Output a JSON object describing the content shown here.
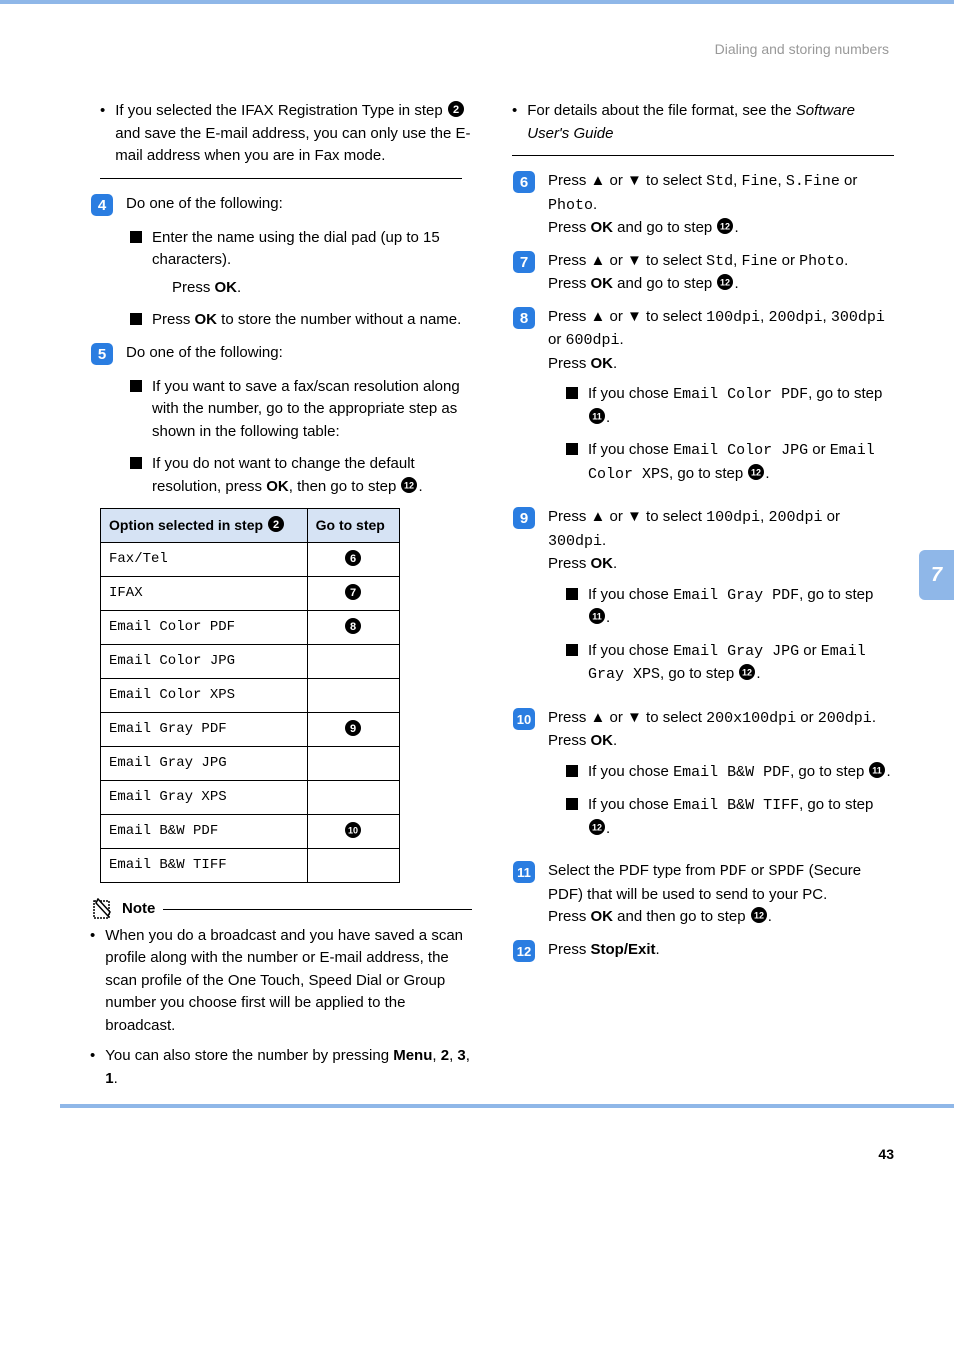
{
  "colors": {
    "accent": "#8fb7e8",
    "step_fill": "#2a7de1",
    "ref_fill": "#000000",
    "header_bg": "#d6e3f4"
  },
  "header": {
    "breadcrumb": "Dialing and storing numbers"
  },
  "side_tab": "7",
  "page_number": "43",
  "left": {
    "intro_bullet": {
      "part1": "If you selected the IFAX Registration Type in step ",
      "ref": "2",
      "part2": " and save the E-mail address, you can only use the E-mail address when you are in Fax mode."
    },
    "step4": {
      "num": "4",
      "lead": "Do one of the following:",
      "items": [
        {
          "line1": "Enter the name using the dial pad (up to 15 characters).",
          "line2_a": "Press ",
          "line2_b": "OK",
          "line2_c": "."
        },
        {
          "line1_a": "Press ",
          "line1_b": "OK",
          "line1_c": " to store the number without a name."
        }
      ]
    },
    "step5": {
      "num": "5",
      "lead": "Do one of the following:",
      "items": [
        {
          "text": "If you want to save a fax/scan resolution along with the number, go to the appropriate step as shown in the following table:"
        },
        {
          "part1": "If you do not want to change the default resolution, press ",
          "bold": "OK",
          "part2": ", then go to step ",
          "ref": "12",
          "part3": "."
        }
      ]
    },
    "table": {
      "h1_a": "Option selected in step ",
      "h1_ref": "2",
      "h2": "Go to step",
      "rows": [
        {
          "opt": "Fax/Tel",
          "ref": "6"
        },
        {
          "opt": "IFAX",
          "ref": "7"
        },
        {
          "opt": "Email Color PDF",
          "ref": "8"
        },
        {
          "opt": "Email Color JPG",
          "ref": ""
        },
        {
          "opt": "Email Color XPS",
          "ref": ""
        },
        {
          "opt": "Email Gray PDF",
          "ref": "9"
        },
        {
          "opt": "Email Gray JPG",
          "ref": ""
        },
        {
          "opt": "Email Gray XPS",
          "ref": ""
        },
        {
          "opt": "Email B&W PDF",
          "ref": "10"
        },
        {
          "opt": "Email B&W TIFF",
          "ref": ""
        }
      ]
    },
    "note": {
      "title": "Note",
      "b1": "When you do a broadcast and you have saved a scan profile along with the number or E-mail address, the scan profile of the One Touch, Speed Dial or Group number you choose first will be applied to the broadcast.",
      "b2_a": "You can also store the number by pressing ",
      "b2_b": "Menu",
      "b2_c": ", ",
      "b2_d": "2",
      "b2_e": ", ",
      "b2_f": "3",
      "b2_g": ", ",
      "b2_h": "1",
      "b2_i": "."
    }
  },
  "right": {
    "intro": {
      "a": "For details about the file format, see the ",
      "b": "Software User's Guide"
    },
    "s6": {
      "num": "6",
      "a": "Press ",
      "arr": "▲ or ▼",
      "b": " to select ",
      "m1": "Std",
      "c": ", ",
      "m2": "Fine",
      "d": ", ",
      "m3": "S.Fine",
      "e": " or ",
      "m4": "Photo",
      "f": ".",
      "g": "Press ",
      "h": "OK",
      "i": " and go to step ",
      "ref": "12",
      "j": "."
    },
    "s7": {
      "num": "7",
      "a": "Press ",
      "arr": "▲ or ▼",
      "b": " to select ",
      "m1": "Std",
      "c": ", ",
      "m2": "Fine",
      "d": " or ",
      "m3": "Photo",
      "e": ".",
      "f": "Press ",
      "g": "OK",
      "h": " and go to step ",
      "ref": "12",
      "i": "."
    },
    "s8": {
      "num": "8",
      "a": "Press ",
      "arr": "▲ or ▼",
      "b": " to select ",
      "m1": "100dpi",
      "c": ", ",
      "m2": "200dpi",
      "d": ", ",
      "m3": "300dpi",
      "e": " or ",
      "m4": "600dpi",
      "f": ".",
      "g": "Press ",
      "h": "OK",
      "i": ".",
      "sub": [
        {
          "a": "If you chose ",
          "m": "Email Color PDF",
          "b": ", go to step ",
          "ref": "11",
          "c": "."
        },
        {
          "a": "If you chose ",
          "m1": "Email Color JPG",
          "b": " or ",
          "m2": "Email Color XPS",
          "c": ", go to step ",
          "ref": "12",
          "d": "."
        }
      ]
    },
    "s9": {
      "num": "9",
      "a": "Press ",
      "arr": "▲ or ▼",
      "b": " to select ",
      "m1": "100dpi",
      "c": ", ",
      "m2": "200dpi",
      "d": " or ",
      "m3": "300dpi",
      "e": ".",
      "f": "Press ",
      "g": "OK",
      "h": ".",
      "sub": [
        {
          "a": "If you chose ",
          "m": " Email Gray PDF",
          "b": ", go to step ",
          "ref": "11",
          "c": "."
        },
        {
          "a": "If you chose ",
          "m1": "Email Gray JPG",
          "b": " or ",
          "m2": "Email Gray XPS",
          "c": ", go to step ",
          "ref": "12",
          "d": "."
        }
      ]
    },
    "s10": {
      "num": "10",
      "a": "Press ",
      "arr": "▲ or ▼",
      "b": " to select ",
      "m1": "200x100dpi",
      "c": " or ",
      "m2": "200dpi",
      "d": ".",
      "e": "Press ",
      "f": "OK",
      "g": ".",
      "sub": [
        {
          "a": "If you chose ",
          "m": "Email B&W PDF",
          "b": ", go to step ",
          "ref": "11",
          "c": "."
        },
        {
          "a": "If you chose ",
          "m": "Email B&W TIFF",
          "b": ", go to step ",
          "ref": "12",
          "c": "."
        }
      ]
    },
    "s11": {
      "num": "11",
      "a": "Select the PDF type from ",
      "m1": "PDF",
      "b": " or ",
      "m2": "SPDF",
      "c": " (Secure PDF) that will be used to send to your PC.",
      "d": "Press ",
      "e": "OK",
      "f": " and then go to step ",
      "ref": "12",
      "g": "."
    },
    "s12": {
      "num": "12",
      "a": "Press ",
      "b": "Stop/Exit",
      "c": "."
    }
  }
}
